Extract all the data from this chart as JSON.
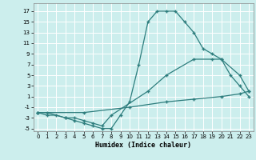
{
  "title": "",
  "xlabel": "Humidex (Indice chaleur)",
  "background_color": "#cceeed",
  "grid_color": "#ffffff",
  "line_color": "#2d7d7d",
  "xlim": [
    -0.5,
    23.5
  ],
  "ylim": [
    -5.5,
    18.5
  ],
  "xticks": [
    0,
    1,
    2,
    3,
    4,
    5,
    6,
    7,
    8,
    9,
    10,
    11,
    12,
    13,
    14,
    15,
    16,
    17,
    18,
    19,
    20,
    21,
    22,
    23
  ],
  "yticks": [
    -5,
    -3,
    -1,
    1,
    3,
    5,
    7,
    9,
    11,
    13,
    15,
    17
  ],
  "line1_x": [
    0,
    1,
    2,
    3,
    4,
    5,
    6,
    7,
    8,
    9,
    10,
    11,
    12,
    13,
    14,
    15,
    16,
    17,
    18,
    19,
    20,
    21,
    22,
    23
  ],
  "line1_y": [
    -2,
    -2.5,
    -2.5,
    -3,
    -3.5,
    -4,
    -4.5,
    -5,
    -5,
    -2.5,
    0,
    7,
    15,
    17,
    17,
    17,
    15,
    13,
    10,
    9,
    8,
    5,
    3,
    1
  ],
  "line2_x": [
    0,
    1,
    3,
    4,
    5,
    6,
    7,
    8,
    12,
    14,
    17,
    19,
    20,
    22,
    23
  ],
  "line2_y": [
    -2,
    -2,
    -3,
    -3,
    -3.5,
    -4,
    -4.5,
    -2.5,
    2,
    5,
    8,
    8,
    8,
    5,
    2
  ],
  "line3_x": [
    0,
    5,
    10,
    14,
    17,
    20,
    22,
    23
  ],
  "line3_y": [
    -2,
    -2,
    -1,
    0,
    0.5,
    1,
    1.5,
    2
  ]
}
